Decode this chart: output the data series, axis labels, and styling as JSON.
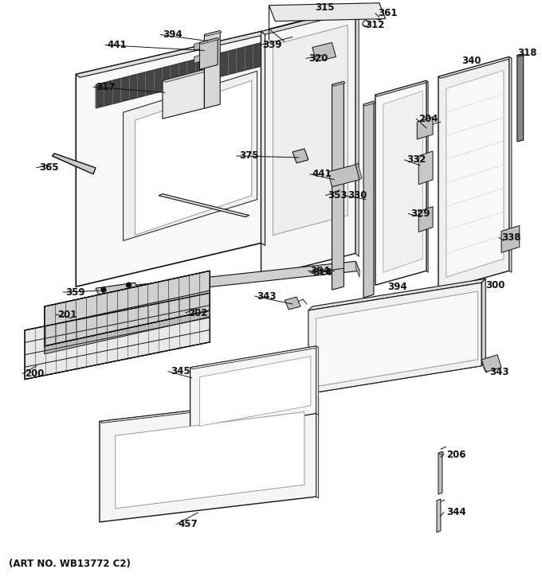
{
  "footer": "(ART NO. WB13772 C2)",
  "bg_color": "#ffffff",
  "lc": "#111111",
  "fc_light": "#f2f2f2",
  "fc_mid": "#d8d8d8",
  "fc_dark": "#b0b0b0",
  "fc_white": "#ffffff"
}
